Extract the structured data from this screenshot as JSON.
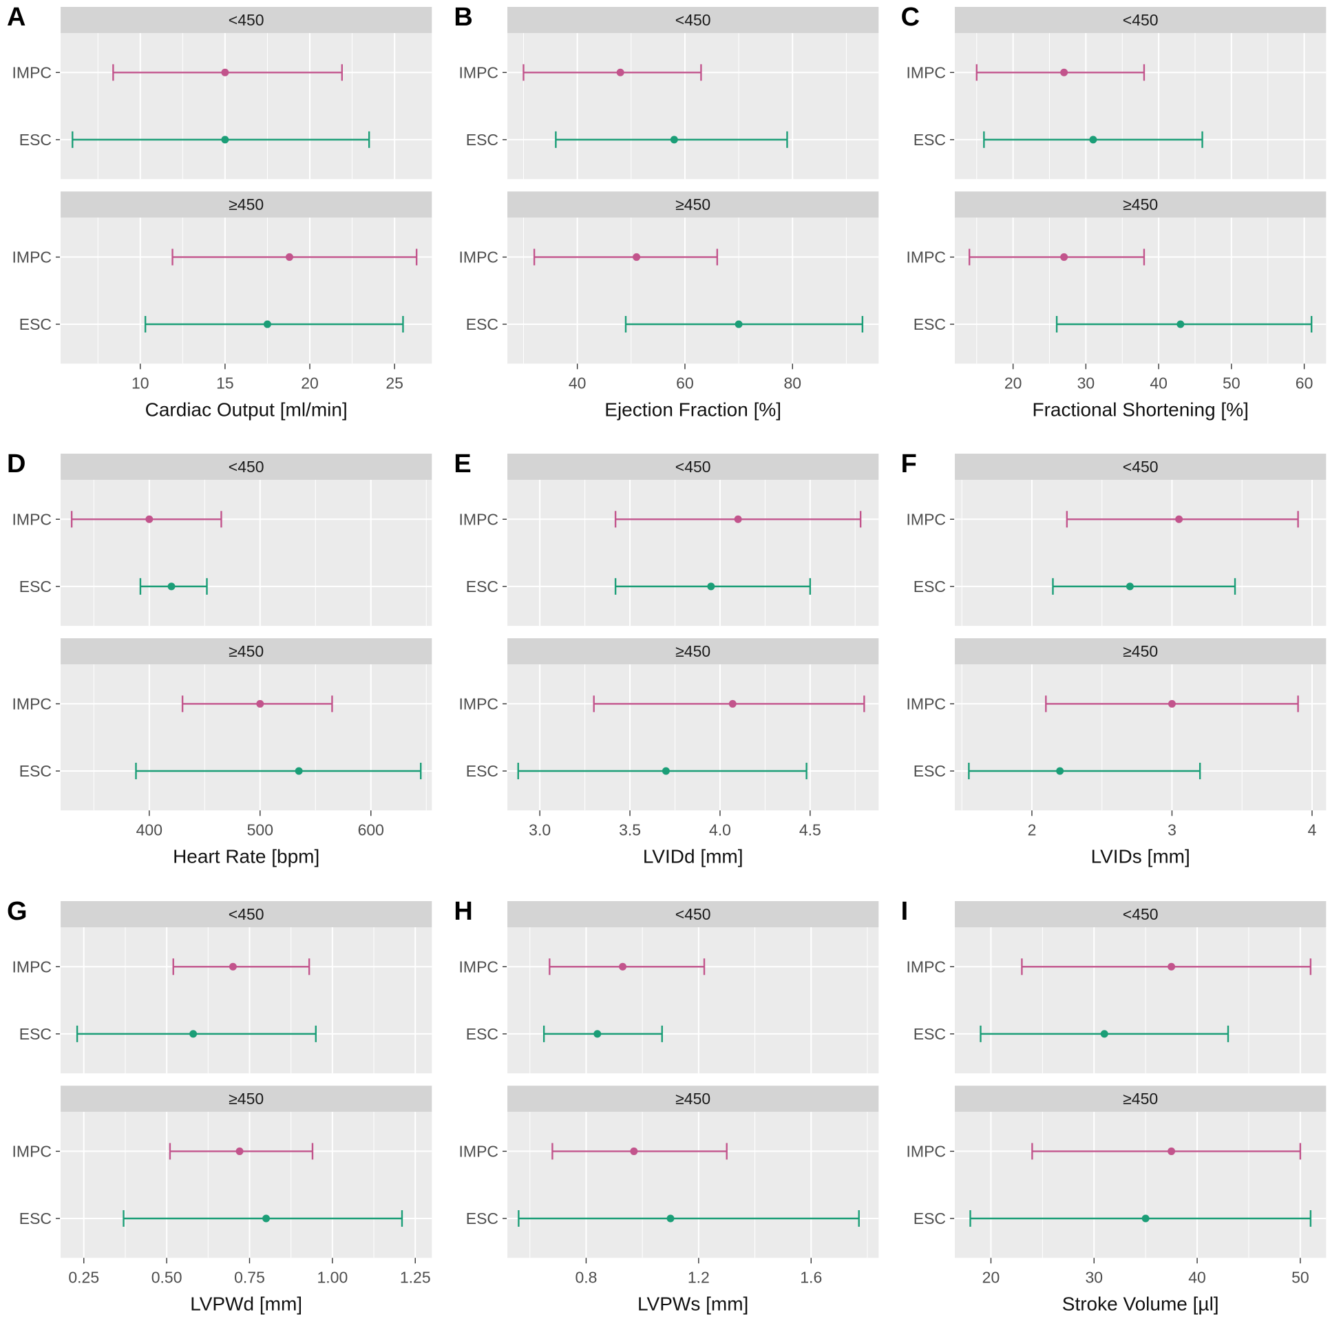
{
  "figure": {
    "groups": [
      "IMPC",
      "ESC"
    ],
    "group_colors": {
      "IMPC": "#c2548c",
      "ESC": "#1b9e77"
    },
    "facet_labels": [
      "<450",
      "≥450"
    ],
    "panel_bg": "#ebebeb",
    "strip_bg": "#d4d4d4",
    "grid_color": "#ffffff",
    "tick_text_color": "#4d4d4d",
    "strip_text_color": "#1a1a1a",
    "axis_title_color": "#111111",
    "axis_tick_color": "#333333"
  },
  "chart_data": [
    {
      "type": "errorbar",
      "panel": "A",
      "xlabel": "Cardiac Output [ml/min]",
      "xlim": [
        5.3,
        27.2
      ],
      "ticks": [
        10,
        15,
        20,
        25
      ],
      "tick_labels": [
        "10",
        "15",
        "20",
        "25"
      ],
      "facets": [
        {
          "label": "<450",
          "rows": [
            {
              "group": "IMPC",
              "lower": 8.4,
              "center": 15.0,
              "upper": 21.9
            },
            {
              "group": "ESC",
              "lower": 6.0,
              "center": 15.0,
              "upper": 23.5
            }
          ]
        },
        {
          "label": "≥450",
          "rows": [
            {
              "group": "IMPC",
              "lower": 11.9,
              "center": 18.8,
              "upper": 26.3
            },
            {
              "group": "ESC",
              "lower": 10.3,
              "center": 17.5,
              "upper": 25.5
            }
          ]
        }
      ]
    },
    {
      "type": "errorbar",
      "panel": "B",
      "xlabel": "Ejection Fraction [%]",
      "xlim": [
        27,
        96
      ],
      "ticks": [
        40,
        60,
        80
      ],
      "tick_labels": [
        "40",
        "60",
        "80"
      ],
      "facets": [
        {
          "label": "<450",
          "rows": [
            {
              "group": "IMPC",
              "lower": 30,
              "center": 48,
              "upper": 63
            },
            {
              "group": "ESC",
              "lower": 36,
              "center": 58,
              "upper": 79
            }
          ]
        },
        {
          "label": "≥450",
          "rows": [
            {
              "group": "IMPC",
              "lower": 32,
              "center": 51,
              "upper": 66
            },
            {
              "group": "ESC",
              "lower": 49,
              "center": 70,
              "upper": 93
            }
          ]
        }
      ]
    },
    {
      "type": "errorbar",
      "panel": "C",
      "xlabel": "Fractional Shortening [%]",
      "xlim": [
        12,
        63
      ],
      "ticks": [
        20,
        30,
        40,
        50,
        60
      ],
      "tick_labels": [
        "20",
        "30",
        "40",
        "50",
        "60"
      ],
      "facets": [
        {
          "label": "<450",
          "rows": [
            {
              "group": "IMPC",
              "lower": 15,
              "center": 27,
              "upper": 38
            },
            {
              "group": "ESC",
              "lower": 16,
              "center": 31,
              "upper": 46
            }
          ]
        },
        {
          "label": "≥450",
          "rows": [
            {
              "group": "IMPC",
              "lower": 14,
              "center": 27,
              "upper": 38
            },
            {
              "group": "ESC",
              "lower": 26,
              "center": 43,
              "upper": 61
            }
          ]
        }
      ]
    },
    {
      "type": "errorbar",
      "panel": "D",
      "xlabel": "Heart Rate [bpm]",
      "xlim": [
        320,
        655
      ],
      "ticks": [
        400,
        500,
        600
      ],
      "tick_labels": [
        "400",
        "500",
        "600"
      ],
      "facets": [
        {
          "label": "<450",
          "rows": [
            {
              "group": "IMPC",
              "lower": 330,
              "center": 400,
              "upper": 465
            },
            {
              "group": "ESC",
              "lower": 392,
              "center": 420,
              "upper": 452
            }
          ]
        },
        {
          "label": "≥450",
          "rows": [
            {
              "group": "IMPC",
              "lower": 430,
              "center": 500,
              "upper": 565
            },
            {
              "group": "ESC",
              "lower": 388,
              "center": 535,
              "upper": 645
            }
          ]
        }
      ]
    },
    {
      "type": "errorbar",
      "panel": "E",
      "xlabel": "LVIDd [mm]",
      "xlim": [
        2.82,
        4.88
      ],
      "ticks": [
        3.0,
        3.5,
        4.0,
        4.5
      ],
      "tick_labels": [
        "3.0",
        "3.5",
        "4.0",
        "4.5"
      ],
      "facets": [
        {
          "label": "<450",
          "rows": [
            {
              "group": "IMPC",
              "lower": 3.42,
              "center": 4.1,
              "upper": 4.78
            },
            {
              "group": "ESC",
              "lower": 3.42,
              "center": 3.95,
              "upper": 4.5
            }
          ]
        },
        {
          "label": "≥450",
          "rows": [
            {
              "group": "IMPC",
              "lower": 3.3,
              "center": 4.07,
              "upper": 4.8
            },
            {
              "group": "ESC",
              "lower": 2.88,
              "center": 3.7,
              "upper": 4.48
            }
          ]
        }
      ]
    },
    {
      "type": "errorbar",
      "panel": "F",
      "xlabel": "LVIDs [mm]",
      "xlim": [
        1.45,
        4.1
      ],
      "ticks": [
        2,
        3,
        4
      ],
      "tick_labels": [
        "2",
        "3",
        "4"
      ],
      "facets": [
        {
          "label": "<450",
          "rows": [
            {
              "group": "IMPC",
              "lower": 2.25,
              "center": 3.05,
              "upper": 3.9
            },
            {
              "group": "ESC",
              "lower": 2.15,
              "center": 2.7,
              "upper": 3.45
            }
          ]
        },
        {
          "label": "≥450",
          "rows": [
            {
              "group": "IMPC",
              "lower": 2.1,
              "center": 3.0,
              "upper": 3.9
            },
            {
              "group": "ESC",
              "lower": 1.55,
              "center": 2.2,
              "upper": 3.2
            }
          ]
        }
      ]
    },
    {
      "type": "errorbar",
      "panel": "G",
      "xlabel": "LVPWd [mm]",
      "xlim": [
        0.18,
        1.3
      ],
      "ticks": [
        0.25,
        0.5,
        0.75,
        1.0,
        1.25
      ],
      "tick_labels": [
        "0.25",
        "0.50",
        "0.75",
        "1.00",
        "1.25"
      ],
      "facets": [
        {
          "label": "<450",
          "rows": [
            {
              "group": "IMPC",
              "lower": 0.52,
              "center": 0.7,
              "upper": 0.93
            },
            {
              "group": "ESC",
              "lower": 0.23,
              "center": 0.58,
              "upper": 0.95
            }
          ]
        },
        {
          "label": "≥450",
          "rows": [
            {
              "group": "IMPC",
              "lower": 0.51,
              "center": 0.72,
              "upper": 0.94
            },
            {
              "group": "ESC",
              "lower": 0.37,
              "center": 0.8,
              "upper": 1.21
            }
          ]
        }
      ]
    },
    {
      "type": "errorbar",
      "panel": "H",
      "xlabel": "LVPWs [mm]",
      "xlim": [
        0.52,
        1.84
      ],
      "ticks": [
        0.8,
        1.2,
        1.6
      ],
      "tick_labels": [
        "0.8",
        "1.2",
        "1.6"
      ],
      "facets": [
        {
          "label": "<450",
          "rows": [
            {
              "group": "IMPC",
              "lower": 0.67,
              "center": 0.93,
              "upper": 1.22
            },
            {
              "group": "ESC",
              "lower": 0.65,
              "center": 0.84,
              "upper": 1.07
            }
          ]
        },
        {
          "label": "≥450",
          "rows": [
            {
              "group": "IMPC",
              "lower": 0.68,
              "center": 0.97,
              "upper": 1.3
            },
            {
              "group": "ESC",
              "lower": 0.56,
              "center": 1.1,
              "upper": 1.77
            }
          ]
        }
      ]
    },
    {
      "type": "errorbar",
      "panel": "I",
      "xlabel": "Stroke Volume [µl]",
      "xlim": [
        16.5,
        52.5
      ],
      "ticks": [
        20,
        30,
        40,
        50
      ],
      "tick_labels": [
        "20",
        "30",
        "40",
        "50"
      ],
      "facets": [
        {
          "label": "<450",
          "rows": [
            {
              "group": "IMPC",
              "lower": 23,
              "center": 37.5,
              "upper": 51
            },
            {
              "group": "ESC",
              "lower": 19,
              "center": 31,
              "upper": 43
            }
          ]
        },
        {
          "label": "≥450",
          "rows": [
            {
              "group": "IMPC",
              "lower": 24,
              "center": 37.5,
              "upper": 50
            },
            {
              "group": "ESC",
              "lower": 18,
              "center": 35,
              "upper": 51
            }
          ]
        }
      ]
    }
  ]
}
